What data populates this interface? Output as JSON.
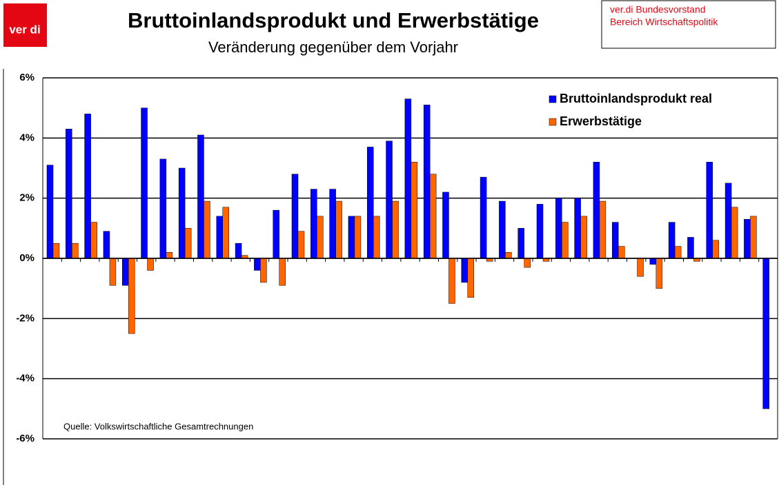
{
  "logo": "ver di",
  "header_box": [
    "ver.di Bundesvorstand",
    "Bereich Wirtschaftspolitik"
  ],
  "chart_data": {
    "type": "bar",
    "title": "Bruttoinlandsprodukt und Erwerbstätige",
    "subtitle": "Veränderung gegenüber dem Vorjahr",
    "annotation": "Quelle: Volkswirtschaftliche Gesamtrechnungen",
    "categories": [
      null,
      null,
      null,
      null,
      null,
      null,
      null,
      null,
      null,
      null,
      null,
      null,
      null,
      null,
      null,
      null,
      null,
      null,
      null,
      null,
      null,
      null,
      null,
      null,
      null,
      null,
      null,
      null,
      null,
      null,
      null,
      null,
      null,
      null,
      null,
      null,
      null,
      null,
      null
    ],
    "series": [
      {
        "name": "Bruttoinlandsprodukt real",
        "color": "#0000ff",
        "values": [
          3.1,
          4.3,
          4.8,
          0.9,
          -0.9,
          5.0,
          3.3,
          3.0,
          4.1,
          1.4,
          0.5,
          -0.4,
          1.6,
          2.8,
          2.3,
          2.3,
          1.4,
          3.7,
          3.9,
          5.3,
          5.1,
          2.2,
          -0.8,
          2.7,
          1.9,
          1.0,
          1.8,
          2.0,
          2.0,
          3.2,
          1.2,
          0.0,
          -0.2,
          1.2,
          0.7,
          3.2,
          2.5,
          1.3,
          -5.0
        ]
      },
      {
        "name": "Erwerbstätige",
        "color": "#ff6600",
        "values": [
          0.5,
          0.5,
          1.2,
          -0.9,
          -2.5,
          -0.4,
          0.2,
          1.0,
          1.9,
          1.7,
          0.1,
          -0.8,
          -0.9,
          0.9,
          1.4,
          1.9,
          1.4,
          1.4,
          1.9,
          3.2,
          2.8,
          -1.5,
          -1.3,
          -0.1,
          0.2,
          -0.3,
          -0.1,
          1.2,
          1.4,
          1.9,
          0.4,
          -0.6,
          -1.0,
          0.4,
          -0.1,
          0.6,
          1.7,
          1.4,
          0.0
        ]
      }
    ],
    "ylim": [
      -6,
      6
    ],
    "yticks": [
      {
        "value": -6,
        "label": "-6%"
      },
      {
        "value": -4,
        "label": "-4%"
      },
      {
        "value": -2,
        "label": "-2%"
      },
      {
        "value": 0,
        "label": "0%"
      },
      {
        "value": 2,
        "label": "2%"
      },
      {
        "value": 4,
        "label": "4%"
      },
      {
        "value": 6,
        "label": "6%"
      }
    ],
    "grid": true,
    "legend": "top-right"
  }
}
